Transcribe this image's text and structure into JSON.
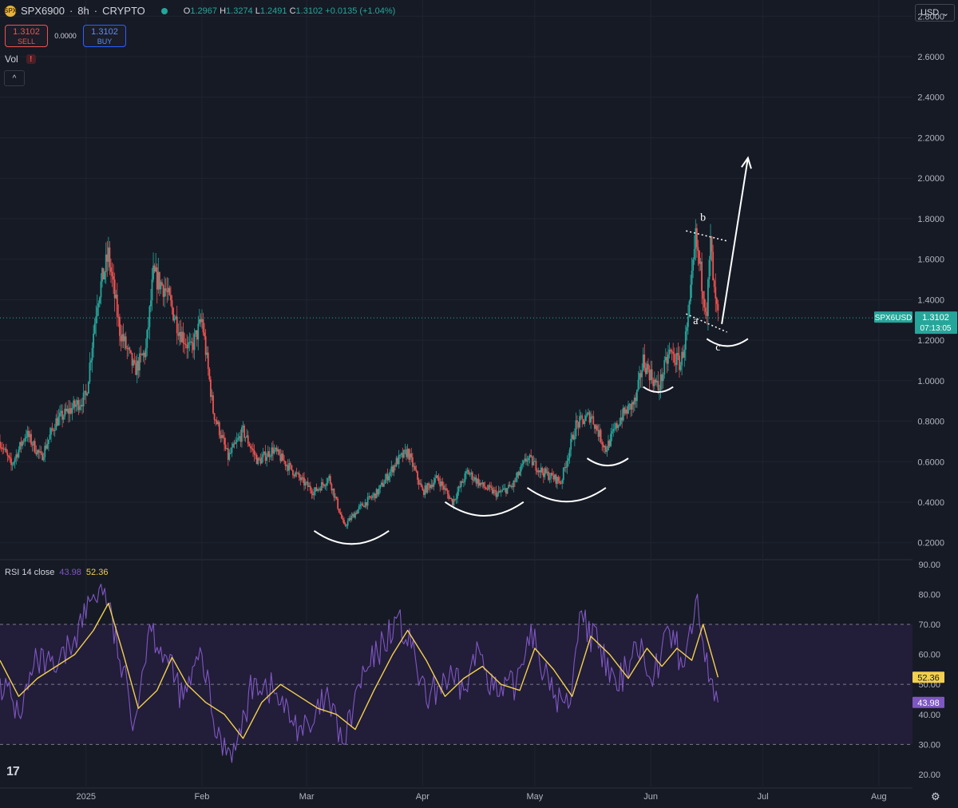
{
  "header": {
    "coin_badge": "SPX",
    "symbol": "SPX6900",
    "interval": "8h",
    "exchange": "CRYPTO",
    "separator": "·",
    "ohlc": {
      "o_label": "O",
      "o": "1.2967",
      "h_label": "H",
      "h": "1.3274",
      "l_label": "L",
      "l": "1.2491",
      "c_label": "C",
      "c": "1.3102",
      "change": "+0.0135 (+1.04%)"
    }
  },
  "trade": {
    "sell_price": "1.3102",
    "sell_label": "SELL",
    "spread": "0.0000",
    "buy_price": "1.3102",
    "buy_label": "BUY"
  },
  "volume": {
    "label": "Vol",
    "warning": "!",
    "collapse": "^"
  },
  "currency": {
    "label": "USD",
    "chevron": "⌄"
  },
  "price_tag": {
    "symbol": "SPX6USD",
    "price": "1.3102",
    "countdown": "07:13:05"
  },
  "rsi": {
    "label": "RSI 14 close",
    "rsi_value": "43.98",
    "ma_value": "52.36"
  },
  "colors": {
    "background": "#161a25",
    "up": "#26a69a",
    "down": "#ef5350",
    "rsi_line": "#7e57c2",
    "rsi_ma": "#f2d04e",
    "rsi_band": "#251f3d",
    "annotation": "#ffffff"
  },
  "chart_data": [
    {
      "type": "candlestick",
      "series_label": "SPX6900 · 8h · CRYPTO",
      "y_ticks": [
        "2.8000",
        "2.6000",
        "2.4000",
        "2.2000",
        "2.0000",
        "1.8000",
        "1.6000",
        "1.4000",
        "1.2000",
        "1.0000",
        "0.8000",
        "0.6000",
        "0.4000",
        "0.2000"
      ],
      "ylim": [
        0.12,
        2.88
      ],
      "x_ticks": [
        "2025",
        "Feb",
        "Mar",
        "Apr",
        "May",
        "Jun",
        "Jul",
        "Aug"
      ],
      "x_dates": [
        "2025-01-01",
        "2025-02-01",
        "2025-03-01",
        "2025-04-01",
        "2025-05-01",
        "2025-06-01",
        "2025-07-01",
        "2025-08-01"
      ],
      "xlim": [
        "2024-12-09",
        "2025-08-10"
      ],
      "last_price": 1.3102,
      "price_path": [
        [
          "2024-12-09",
          0.7
        ],
        [
          "2024-12-12",
          0.58
        ],
        [
          "2024-12-16",
          0.74
        ],
        [
          "2024-12-20",
          0.62
        ],
        [
          "2024-12-24",
          0.8
        ],
        [
          "2024-12-28",
          0.86
        ],
        [
          "2025-01-01",
          0.92
        ],
        [
          "2025-01-04",
          1.4
        ],
        [
          "2025-01-07",
          1.62
        ],
        [
          "2025-01-10",
          1.25
        ],
        [
          "2025-01-14",
          1.05
        ],
        [
          "2025-01-17",
          1.15
        ],
        [
          "2025-01-19",
          1.52
        ],
        [
          "2025-01-22",
          1.46
        ],
        [
          "2025-01-26",
          1.25
        ],
        [
          "2025-01-29",
          1.15
        ],
        [
          "2025-02-01",
          1.3
        ],
        [
          "2025-02-04",
          0.85
        ],
        [
          "2025-02-08",
          0.62
        ],
        [
          "2025-02-12",
          0.75
        ],
        [
          "2025-02-16",
          0.6
        ],
        [
          "2025-02-20",
          0.66
        ],
        [
          "2025-02-24",
          0.58
        ],
        [
          "2025-02-28",
          0.5
        ],
        [
          "2025-03-03",
          0.45
        ],
        [
          "2025-03-07",
          0.52
        ],
        [
          "2025-03-11",
          0.28
        ],
        [
          "2025-03-15",
          0.37
        ],
        [
          "2025-03-20",
          0.45
        ],
        [
          "2025-03-25",
          0.6
        ],
        [
          "2025-03-28",
          0.65
        ],
        [
          "2025-04-01",
          0.45
        ],
        [
          "2025-04-05",
          0.52
        ],
        [
          "2025-04-09",
          0.4
        ],
        [
          "2025-04-13",
          0.55
        ],
        [
          "2025-04-17",
          0.48
        ],
        [
          "2025-04-21",
          0.44
        ],
        [
          "2025-04-25",
          0.48
        ],
        [
          "2025-04-29",
          0.62
        ],
        [
          "2025-05-03",
          0.55
        ],
        [
          "2025-05-08",
          0.5
        ],
        [
          "2025-05-12",
          0.78
        ],
        [
          "2025-05-16",
          0.83
        ],
        [
          "2025-05-20",
          0.66
        ],
        [
          "2025-05-24",
          0.82
        ],
        [
          "2025-05-28",
          0.9
        ],
        [
          "2025-05-30",
          1.1
        ],
        [
          "2025-06-03",
          0.96
        ],
        [
          "2025-06-06",
          1.14
        ],
        [
          "2025-06-09",
          1.08
        ],
        [
          "2025-06-11",
          1.28
        ],
        [
          "2025-06-13",
          1.7
        ],
        [
          "2025-06-15",
          1.45
        ],
        [
          "2025-06-16",
          1.35
        ],
        [
          "2025-06-17",
          1.68
        ],
        [
          "2025-06-18",
          1.42
        ],
        [
          "2025-06-19",
          1.31
        ]
      ],
      "annotations": {
        "wave_labels": [
          {
            "text": "a",
            "x": "2025-06-13",
            "y": 1.28
          },
          {
            "text": "b",
            "x": "2025-06-15",
            "y": 1.79
          },
          {
            "text": "c",
            "x": "2025-06-19",
            "y": 1.15
          }
        ],
        "rounded_bottoms": [
          {
            "x": [
              "2025-03-03",
              "2025-03-23"
            ],
            "y": 0.21
          },
          {
            "x": [
              "2025-04-07",
              "2025-04-28"
            ],
            "y": 0.35
          },
          {
            "x": [
              "2025-04-29",
              "2025-05-20"
            ],
            "y": 0.42
          },
          {
            "x": [
              "2025-05-15",
              "2025-05-26"
            ],
            "y": 0.59
          },
          {
            "x": [
              "2025-05-30",
              "2025-06-07"
            ],
            "y": 0.95
          },
          {
            "x": [
              "2025-06-16",
              "2025-06-27"
            ],
            "y": 1.18
          }
        ],
        "projection_arrow": [
          [
            "2025-06-20",
            1.28
          ],
          [
            "2025-06-27",
            2.1
          ]
        ]
      }
    },
    {
      "type": "line",
      "title": "RSI 14 close",
      "y_ticks": [
        "90.00",
        "80.00",
        "70.00",
        "60.00",
        "50.00",
        "40.00",
        "30.00",
        "20.00"
      ],
      "ylim": [
        16,
        91
      ],
      "bands": [
        30,
        50,
        70
      ],
      "series": [
        {
          "name": "RSI",
          "color": "#7e57c2",
          "points": [
            [
              "2024-12-09",
              52
            ],
            [
              "2024-12-14",
              40
            ],
            [
              "2024-12-19",
              58
            ],
            [
              "2024-12-24",
              54
            ],
            [
              "2024-12-29",
              66
            ],
            [
              "2025-01-03",
              80
            ],
            [
              "2025-01-06",
              82
            ],
            [
              "2025-01-10",
              58
            ],
            [
              "2025-01-14",
              38
            ],
            [
              "2025-01-18",
              70
            ],
            [
              "2025-01-22",
              60
            ],
            [
              "2025-01-27",
              45
            ],
            [
              "2025-02-01",
              60
            ],
            [
              "2025-02-05",
              32
            ],
            [
              "2025-02-10",
              28
            ],
            [
              "2025-02-15",
              52
            ],
            [
              "2025-02-20",
              48
            ],
            [
              "2025-02-25",
              38
            ],
            [
              "2025-03-02",
              34
            ],
            [
              "2025-03-06",
              46
            ],
            [
              "2025-03-11",
              30
            ],
            [
              "2025-03-15",
              50
            ],
            [
              "2025-03-20",
              60
            ],
            [
              "2025-03-25",
              72
            ],
            [
              "2025-03-29",
              62
            ],
            [
              "2025-04-02",
              44
            ],
            [
              "2025-04-07",
              52
            ],
            [
              "2025-04-12",
              48
            ],
            [
              "2025-04-16",
              62
            ],
            [
              "2025-04-21",
              46
            ],
            [
              "2025-04-26",
              50
            ],
            [
              "2025-04-30",
              70
            ],
            [
              "2025-05-05",
              48
            ],
            [
              "2025-05-10",
              42
            ],
            [
              "2025-05-13",
              74
            ],
            [
              "2025-05-18",
              62
            ],
            [
              "2025-05-23",
              48
            ],
            [
              "2025-05-28",
              64
            ],
            [
              "2025-06-02",
              54
            ],
            [
              "2025-06-06",
              68
            ],
            [
              "2025-06-10",
              56
            ],
            [
              "2025-06-13",
              78
            ],
            [
              "2025-06-15",
              64
            ],
            [
              "2025-06-17",
              52
            ],
            [
              "2025-06-19",
              43.98
            ]
          ]
        },
        {
          "name": "RSI-based MA",
          "color": "#f2d04e",
          "points": [
            [
              "2024-12-09",
              58
            ],
            [
              "2024-12-14",
              46
            ],
            [
              "2024-12-19",
              52
            ],
            [
              "2024-12-24",
              56
            ],
            [
              "2024-12-29",
              60
            ],
            [
              "2025-01-03",
              68
            ],
            [
              "2025-01-07",
              77
            ],
            [
              "2025-01-11",
              60
            ],
            [
              "2025-01-15",
              42
            ],
            [
              "2025-01-20",
              48
            ],
            [
              "2025-01-24",
              59
            ],
            [
              "2025-01-28",
              50
            ],
            [
              "2025-02-02",
              44
            ],
            [
              "2025-02-07",
              40
            ],
            [
              "2025-02-12",
              32
            ],
            [
              "2025-02-17",
              44
            ],
            [
              "2025-02-22",
              50
            ],
            [
              "2025-02-27",
              46
            ],
            [
              "2025-03-04",
              42
            ],
            [
              "2025-03-09",
              40
            ],
            [
              "2025-03-14",
              35
            ],
            [
              "2025-03-19",
              48
            ],
            [
              "2025-03-24",
              60
            ],
            [
              "2025-03-28",
              68
            ],
            [
              "2025-04-02",
              58
            ],
            [
              "2025-04-07",
              46
            ],
            [
              "2025-04-12",
              52
            ],
            [
              "2025-04-17",
              56
            ],
            [
              "2025-04-22",
              50
            ],
            [
              "2025-04-27",
              48
            ],
            [
              "2025-05-01",
              62
            ],
            [
              "2025-05-06",
              55
            ],
            [
              "2025-05-11",
              46
            ],
            [
              "2025-05-16",
              66
            ],
            [
              "2025-05-21",
              60
            ],
            [
              "2025-05-26",
              52
            ],
            [
              "2025-05-31",
              62
            ],
            [
              "2025-06-04",
              56
            ],
            [
              "2025-06-08",
              62
            ],
            [
              "2025-06-12",
              58
            ],
            [
              "2025-06-15",
              70
            ],
            [
              "2025-06-19",
              52.36
            ]
          ]
        }
      ]
    }
  ]
}
